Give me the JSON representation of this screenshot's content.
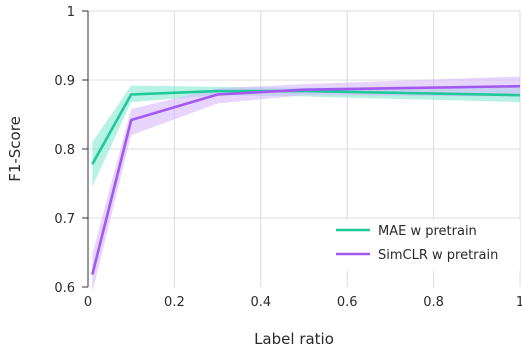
{
  "chart_data": {
    "type": "line",
    "xlabel": "Label ratio",
    "ylabel": "F1-Score",
    "xlim": [
      0,
      1
    ],
    "ylim": [
      0.6,
      1
    ],
    "grid": true,
    "legend_position": "bottom-right",
    "x_ticks": [
      {
        "value": 0,
        "label": "0"
      },
      {
        "value": 0.2,
        "label": "0.2"
      },
      {
        "value": 0.4,
        "label": "0.4"
      },
      {
        "value": 0.6,
        "label": "0.6"
      },
      {
        "value": 0.8,
        "label": "0.8"
      },
      {
        "value": 1,
        "label": "1"
      }
    ],
    "y_ticks": [
      {
        "value": 0.6,
        "label": "0.6"
      },
      {
        "value": 0.7,
        "label": "0.7"
      },
      {
        "value": 0.8,
        "label": "0.8"
      },
      {
        "value": 0.9,
        "label": "0.9"
      },
      {
        "value": 1,
        "label": "1"
      }
    ],
    "series": [
      {
        "name": "MAE w pretrain",
        "color": "#1fc99a",
        "band_color": "#7de8cf",
        "x": [
          0.01,
          0.1,
          0.3,
          0.5,
          1.0
        ],
        "y": [
          0.778,
          0.879,
          0.884,
          0.884,
          0.878
        ],
        "lower": [
          0.745,
          0.868,
          0.878,
          0.876,
          0.868
        ],
        "upper": [
          0.81,
          0.892,
          0.89,
          0.889,
          0.89
        ]
      },
      {
        "name": "SimCLR w pretrain",
        "color": "#a259f0",
        "band_color": "#d6b3fb",
        "x": [
          0.01,
          0.1,
          0.3,
          0.5,
          1.0
        ],
        "y": [
          0.618,
          0.842,
          0.879,
          0.886,
          0.891
        ],
        "lower": [
          0.592,
          0.82,
          0.866,
          0.878,
          0.876
        ],
        "upper": [
          0.648,
          0.858,
          0.888,
          0.894,
          0.905
        ]
      }
    ]
  }
}
